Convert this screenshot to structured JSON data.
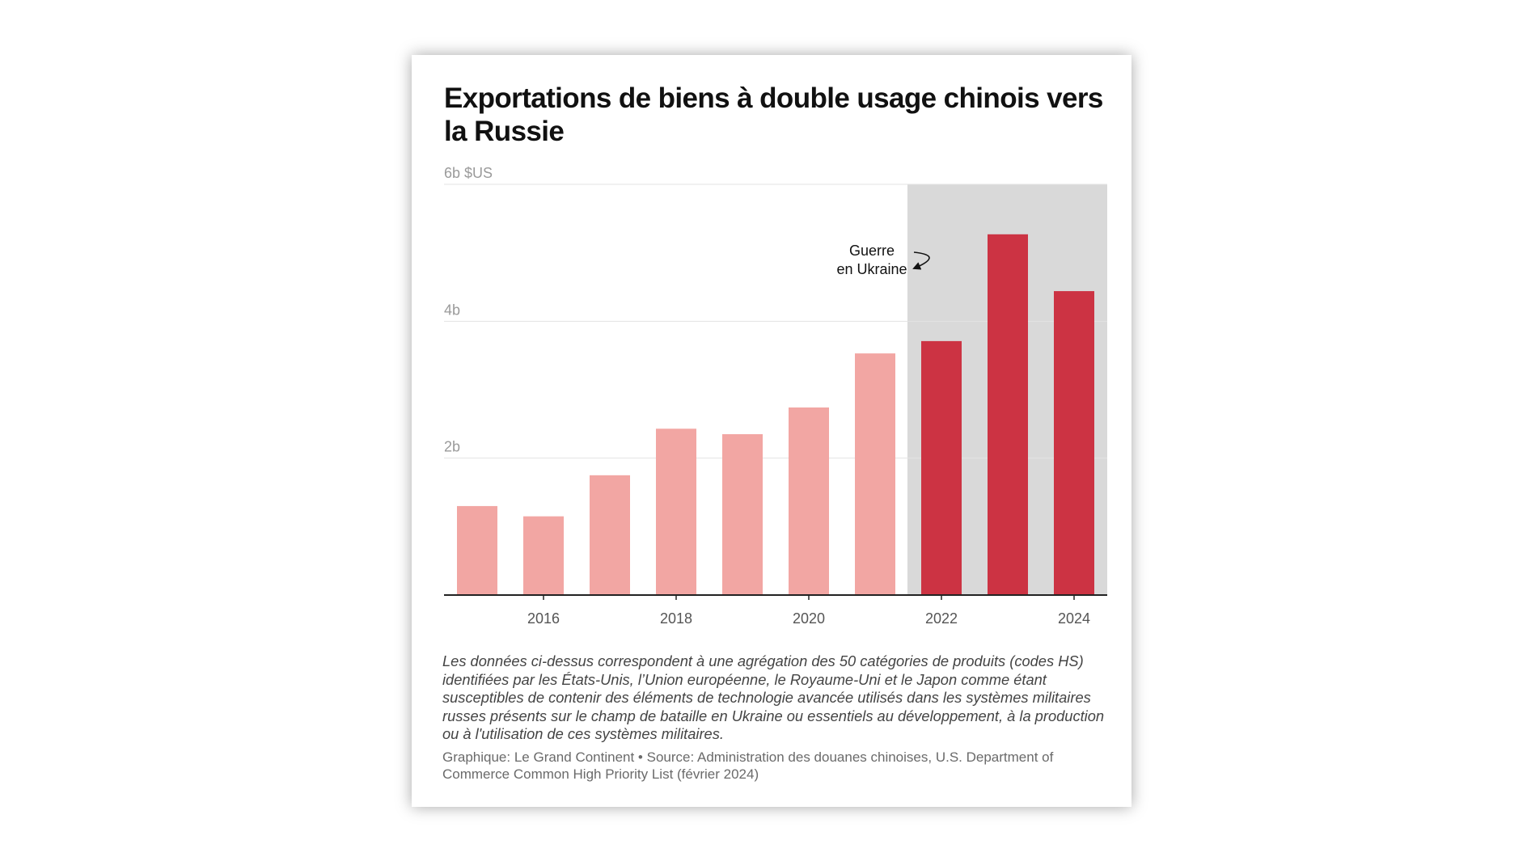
{
  "chart_data": {
    "type": "bar",
    "title": "Exportations de biens à double usage chinois vers la Russie",
    "categories": [
      "2015",
      "2016",
      "2017",
      "2018",
      "2019",
      "2020",
      "2021",
      "2022",
      "2023",
      "2024"
    ],
    "values": [
      1.3,
      1.15,
      1.75,
      2.43,
      2.35,
      2.74,
      3.53,
      3.71,
      5.27,
      4.44
    ],
    "ylim": [
      0,
      6
    ],
    "yticks": [
      {
        "value": 2,
        "label": "2b"
      },
      {
        "value": 4,
        "label": "4b"
      },
      {
        "value": 6,
        "label": "6b $US"
      }
    ],
    "xtick_labels": [
      "2016",
      "2018",
      "2020",
      "2022",
      "2024"
    ],
    "grid": true,
    "highlight": {
      "from": "2022",
      "to": "2024",
      "shade_color": "#d9d9d9"
    },
    "colors": {
      "before": "#f2a6a3",
      "war": "#cc3343",
      "axis": "#222222",
      "grid": "#e3e3e3"
    },
    "annotation": {
      "lines": [
        "Guerre",
        "en Ukraine"
      ],
      "year": "2022"
    }
  },
  "note": "Les données ci-dessus correspondent à une agrégation des 50 catégories de produits (codes HS) identifiées par les États-Unis, l’Union européenne, le Royaume-Uni et le Japon comme étant susceptibles de contenir des éléments de technologie avancée utilisés dans les systèmes militaires russes présents sur le champ de bataille en Ukraine ou essentiels au développement, à la production ou à l'utilisation de ces systèmes militaires.",
  "source": "Graphique: Le Grand Continent • Source: Administration des douanes chinoises, U.S. Department of Commerce Common High Priority List (février 2024)"
}
